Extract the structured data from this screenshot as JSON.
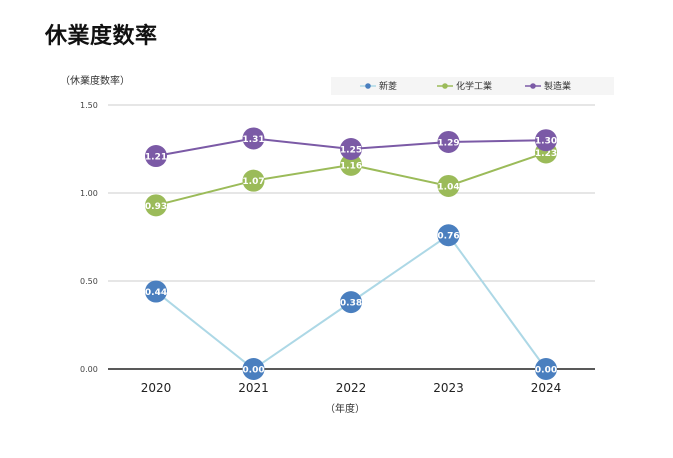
{
  "title": "休業度数率",
  "chart_data": {
    "type": "line",
    "title": "休業度数率",
    "ylabel": "（休業度数率）",
    "xlabel": "（年度）",
    "x": [
      "2020",
      "2021",
      "2022",
      "2023",
      "2024"
    ],
    "ylim": [
      0,
      1.5
    ],
    "yticks": [
      "0.00",
      "0.50",
      "1.00",
      "1.50"
    ],
    "grid": true,
    "legend_position": "top-right",
    "series": [
      {
        "name": "新菱",
        "values": [
          0.44,
          0.0,
          0.38,
          0.76,
          0.0
        ],
        "labels": [
          "0.44",
          "0.00",
          "0.38",
          "0.76",
          "0.00"
        ],
        "line_color": "#add8e6",
        "marker_color": "#4a7fbf"
      },
      {
        "name": "化学工業",
        "values": [
          0.93,
          1.07,
          1.16,
          1.04,
          1.23
        ],
        "labels": [
          "0.93",
          "1.07",
          "1.16",
          "1.04",
          "1.23"
        ],
        "line_color": "#9bbb59",
        "marker_color": "#9bbb59"
      },
      {
        "name": "製造業",
        "values": [
          1.21,
          1.31,
          1.25,
          1.29,
          1.3
        ],
        "labels": [
          "1.21",
          "1.31",
          "1.25",
          "1.29",
          "1.30"
        ],
        "line_color": "#7b5aa6",
        "marker_color": "#7b5aa6"
      }
    ]
  }
}
